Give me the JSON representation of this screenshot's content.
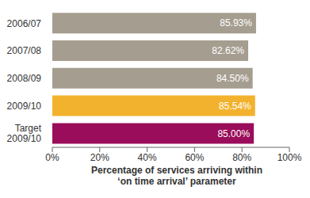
{
  "chart_data": {
    "type": "bar",
    "orientation": "horizontal",
    "categories": [
      "2006/07",
      "2007/08",
      "2008/09",
      "2009/10",
      "Target 2009/10"
    ],
    "values": [
      85.93,
      82.62,
      84.5,
      85.54,
      85.0
    ],
    "value_labels": [
      "85.93%",
      "82.62%",
      "84.50%",
      "85.54%",
      "85.00%"
    ],
    "data_labels": true,
    "colors": [
      "#a59d8f",
      "#a59d8f",
      "#a59d8f",
      "#f3b22d",
      "#9a0d5b"
    ],
    "xlim": [
      0,
      100
    ],
    "xticks": [
      {
        "value": 0,
        "label": "0%"
      },
      {
        "value": 20,
        "label": "20%"
      },
      {
        "value": 40,
        "label": "40%"
      },
      {
        "value": 60,
        "label": "60%"
      },
      {
        "value": 80,
        "label": "80%"
      },
      {
        "value": 100,
        "label": "100%"
      }
    ],
    "x_label": "Percentage of services arriving within ‘on time arrival’ parameter",
    "grid": false
  }
}
